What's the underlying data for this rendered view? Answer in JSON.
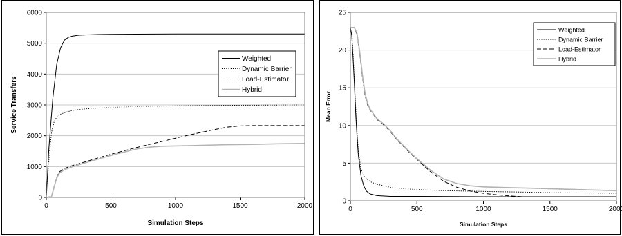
{
  "chart_data": [
    {
      "type": "line",
      "xlabel": "Simulation Steps",
      "ylabel": "Service Transfers",
      "xlim": [
        0,
        2000
      ],
      "ylim": [
        0,
        6000
      ],
      "xticks": [
        "0",
        "500",
        "1000",
        "1500",
        "2000"
      ],
      "yticks": [
        "0",
        "1000",
        "2000",
        "3000",
        "4000",
        "5000",
        "6000"
      ],
      "grid": "horizontal",
      "legend": "right",
      "series": [
        {
          "name": "Weighted",
          "style": "solid",
          "color": "#000000",
          "x": [
            0,
            20,
            50,
            80,
            110,
            140,
            170,
            200,
            250,
            300,
            400,
            500,
            700,
            1000,
            1500,
            2000
          ],
          "y": [
            0,
            1600,
            3200,
            4300,
            4850,
            5100,
            5190,
            5230,
            5260,
            5270,
            5285,
            5290,
            5295,
            5300,
            5300,
            5300
          ]
        },
        {
          "name": "Dynamic Barrier",
          "style": "dotted",
          "color": "#000000",
          "x": [
            0,
            20,
            40,
            60,
            80,
            100,
            150,
            200,
            300,
            400,
            500,
            700,
            1000,
            1500,
            2000
          ],
          "y": [
            0,
            1200,
            2100,
            2450,
            2600,
            2680,
            2760,
            2820,
            2870,
            2900,
            2920,
            2950,
            2970,
            2990,
            3000
          ]
        },
        {
          "name": "Load-Estimator",
          "style": "dashed",
          "color": "#000000",
          "x": [
            0,
            40,
            60,
            80,
            100,
            130,
            160,
            200,
            300,
            400,
            500,
            600,
            700,
            800,
            900,
            1000,
            1100,
            1200,
            1300,
            1400,
            1500,
            1600,
            1700,
            1800,
            1900,
            2000
          ],
          "y": [
            0,
            30,
            350,
            650,
            820,
            920,
            970,
            1030,
            1150,
            1280,
            1400,
            1510,
            1620,
            1720,
            1820,
            1920,
            2020,
            2110,
            2200,
            2280,
            2320,
            2330,
            2330,
            2330,
            2330,
            2330
          ]
        },
        {
          "name": "Hybrid",
          "style": "solid",
          "color": "#b3b3b3",
          "x": [
            0,
            40,
            60,
            80,
            100,
            130,
            160,
            200,
            300,
            400,
            500,
            600,
            700,
            800,
            900,
            1000,
            1200,
            1400,
            1600,
            1800,
            2000
          ],
          "y": [
            0,
            20,
            330,
            620,
            780,
            870,
            930,
            990,
            1120,
            1240,
            1360,
            1470,
            1570,
            1630,
            1660,
            1670,
            1690,
            1710,
            1720,
            1740,
            1750
          ]
        }
      ]
    },
    {
      "type": "line",
      "xlabel": "Simulation Steps",
      "ylabel": "Mean Error",
      "xlim": [
        0,
        2000
      ],
      "ylim": [
        0,
        25
      ],
      "xticks": [
        "0",
        "500",
        "1000",
        "1500",
        "2000"
      ],
      "yticks": [
        "0",
        "5",
        "10",
        "15",
        "20",
        "25"
      ],
      "grid": "horizontal",
      "legend": "top-right",
      "series": [
        {
          "name": "Weighted",
          "style": "solid",
          "color": "#000000",
          "x": [
            0,
            10,
            20,
            30,
            40,
            50,
            60,
            80,
            100,
            120,
            150,
            200,
            300,
            500,
            1000,
            2000
          ],
          "y": [
            23,
            22,
            19,
            15.5,
            11.5,
            8.5,
            6,
            3.3,
            2,
            1.3,
            0.9,
            0.7,
            0.6,
            0.6,
            0.55,
            0.55
          ]
        },
        {
          "name": "Dynamic Barrier",
          "style": "dotted",
          "color": "#000000",
          "x": [
            0,
            15,
            30,
            45,
            60,
            80,
            100,
            130,
            160,
            200,
            300,
            400,
            500,
            700,
            1000,
            1500,
            2000
          ],
          "y": [
            23,
            21.5,
            16,
            10.5,
            6.5,
            4.2,
            3.3,
            2.8,
            2.45,
            2.2,
            1.8,
            1.6,
            1.5,
            1.35,
            1.25,
            1.1,
            1.0
          ]
        },
        {
          "name": "Load-Estimator",
          "style": "dashed",
          "color": "#000000",
          "x": [
            0,
            30,
            50,
            70,
            90,
            110,
            130,
            150,
            200,
            250,
            300,
            350,
            400,
            450,
            500,
            600,
            700,
            800,
            900,
            1000,
            1100,
            1200,
            1300,
            1400,
            1500,
            1700,
            2000
          ],
          "y": [
            23,
            23,
            22,
            19.5,
            16.5,
            14,
            12.7,
            12,
            10.8,
            10.1,
            9.2,
            8.1,
            7.2,
            6.3,
            5.5,
            3.9,
            2.6,
            1.8,
            1.3,
            1.0,
            0.8,
            0.65,
            0.55,
            0.55,
            0.55,
            0.55,
            0.55
          ]
        },
        {
          "name": "Hybrid",
          "style": "solid",
          "color": "#b3b3b3",
          "x": [
            0,
            30,
            50,
            70,
            90,
            110,
            130,
            150,
            200,
            250,
            300,
            350,
            400,
            450,
            500,
            600,
            700,
            800,
            900,
            1000,
            1200,
            1400,
            1600,
            1800,
            2000
          ],
          "y": [
            23,
            23,
            22.2,
            19.8,
            16.8,
            14.3,
            12.9,
            12.1,
            10.9,
            10.2,
            9.3,
            8.2,
            7.3,
            6.4,
            5.6,
            4.1,
            2.9,
            2.3,
            2.0,
            1.85,
            1.75,
            1.65,
            1.55,
            1.45,
            1.35
          ]
        }
      ]
    }
  ]
}
